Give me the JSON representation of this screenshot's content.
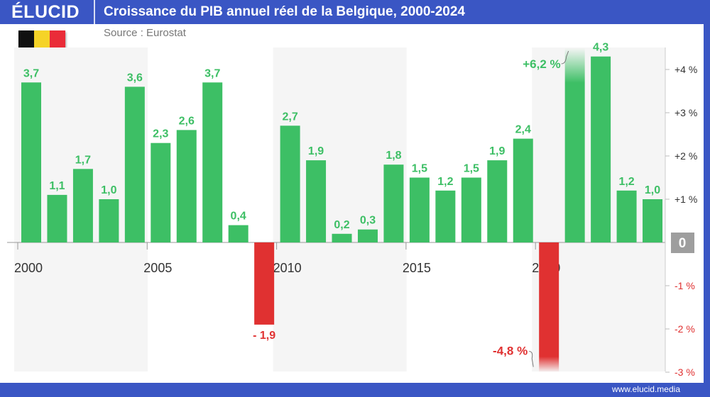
{
  "header": {
    "logo": "ÉLUCID",
    "title": "Croissance du PIB annuel réel de la Belgique, 2000-2024"
  },
  "source": "Source : Eurostat",
  "footer": {
    "website": "www.elucid.media"
  },
  "colors": {
    "brand": "#3a56c4",
    "positive": "#3dbf65",
    "negative": "#e03131",
    "band": "#f5f5f5"
  },
  "flag": {
    "colors": [
      "#111111",
      "#f5d327",
      "#ea2c38"
    ]
  },
  "chart_data": {
    "type": "bar",
    "title": "Croissance du PIB annuel réel de la Belgique, 2000-2024",
    "xlabel": "",
    "ylabel": "",
    "categories": [
      2000,
      2001,
      2002,
      2003,
      2004,
      2005,
      2006,
      2007,
      2008,
      2009,
      2010,
      2011,
      2012,
      2013,
      2014,
      2015,
      2016,
      2017,
      2018,
      2019,
      2020,
      2021,
      2022,
      2023,
      2024
    ],
    "values": [
      3.7,
      1.1,
      1.7,
      1.0,
      3.6,
      2.3,
      2.6,
      3.7,
      0.4,
      -1.9,
      2.7,
      1.9,
      0.2,
      0.3,
      1.8,
      1.5,
      1.2,
      1.5,
      1.9,
      2.4,
      -4.8,
      6.2,
      4.3,
      1.2,
      1.0
    ],
    "data_labels": [
      "3,7",
      "1,1",
      "1,7",
      "1,0",
      "3,6",
      "2,3",
      "2,6",
      "3,7",
      "0,4",
      "- 1,9",
      "2,7",
      "1,9",
      "0,2",
      "0,3",
      "1,8",
      "1,5",
      "1,2",
      "1,5",
      "1,9",
      "2,4",
      "-4,8 %",
      "+6,2 %",
      "4,3",
      "1,2",
      "1,0"
    ],
    "x_tick_labels": [
      "2000",
      "2005",
      "2010",
      "2015",
      "2020"
    ],
    "y_ticks": [
      {
        "v": 4,
        "label": "+4 %"
      },
      {
        "v": 3,
        "label": "+3 %"
      },
      {
        "v": 2,
        "label": "+2 %"
      },
      {
        "v": 1,
        "label": "+1 %"
      },
      {
        "v": 0,
        "label": "0"
      },
      {
        "v": -1,
        "label": "-1 %"
      },
      {
        "v": -2,
        "label": "-2 %"
      },
      {
        "v": -3,
        "label": "-3 %"
      }
    ],
    "ylim": [
      -3,
      4.5
    ],
    "axis_position": "right",
    "clipped_bars_note": "bars beyond the axis range are truncated with a fade",
    "grid": false,
    "shaded_periods": [
      [
        2000,
        2004
      ],
      [
        2010,
        2014
      ],
      [
        2020,
        2024
      ]
    ]
  }
}
